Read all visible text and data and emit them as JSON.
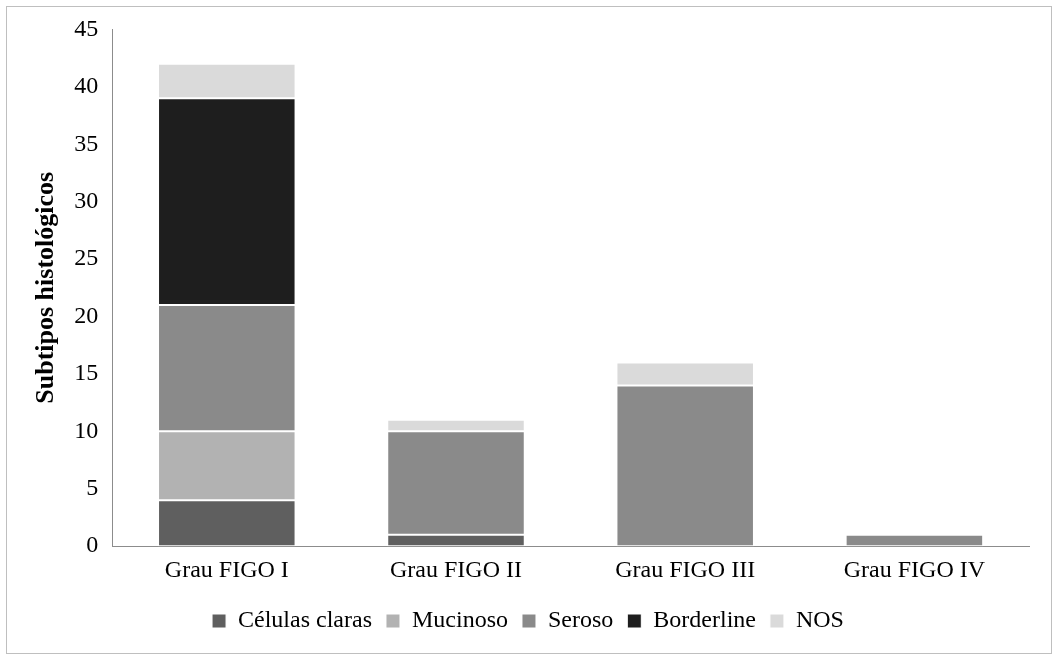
{
  "chart_data": {
    "type": "bar",
    "stacked": true,
    "ylabel": "Subtipos histológicos",
    "categories": [
      "Grau FIGO I",
      "Grau FIGO II",
      "Grau FIGO III",
      "Grau FIGO IV"
    ],
    "series": [
      {
        "name": "Células claras",
        "color": "#5f5f5f",
        "values": [
          4,
          1,
          0,
          0
        ]
      },
      {
        "name": "Mucinoso",
        "color": "#b2b2b2",
        "values": [
          6,
          0,
          0,
          0
        ]
      },
      {
        "name": "Seroso",
        "color": "#8a8a8a",
        "values": [
          11,
          9,
          14,
          1
        ]
      },
      {
        "name": "Borderline",
        "color": "#1e1e1e",
        "values": [
          18,
          0,
          0,
          0
        ]
      },
      {
        "name": "NOS",
        "color": "#dadada",
        "values": [
          3,
          1,
          2,
          0
        ]
      }
    ],
    "ylim": [
      0,
      45
    ],
    "yticks": [
      0,
      5,
      10,
      15,
      20,
      25,
      30,
      35,
      40,
      45
    ],
    "grid": false,
    "legend": "bottom"
  }
}
